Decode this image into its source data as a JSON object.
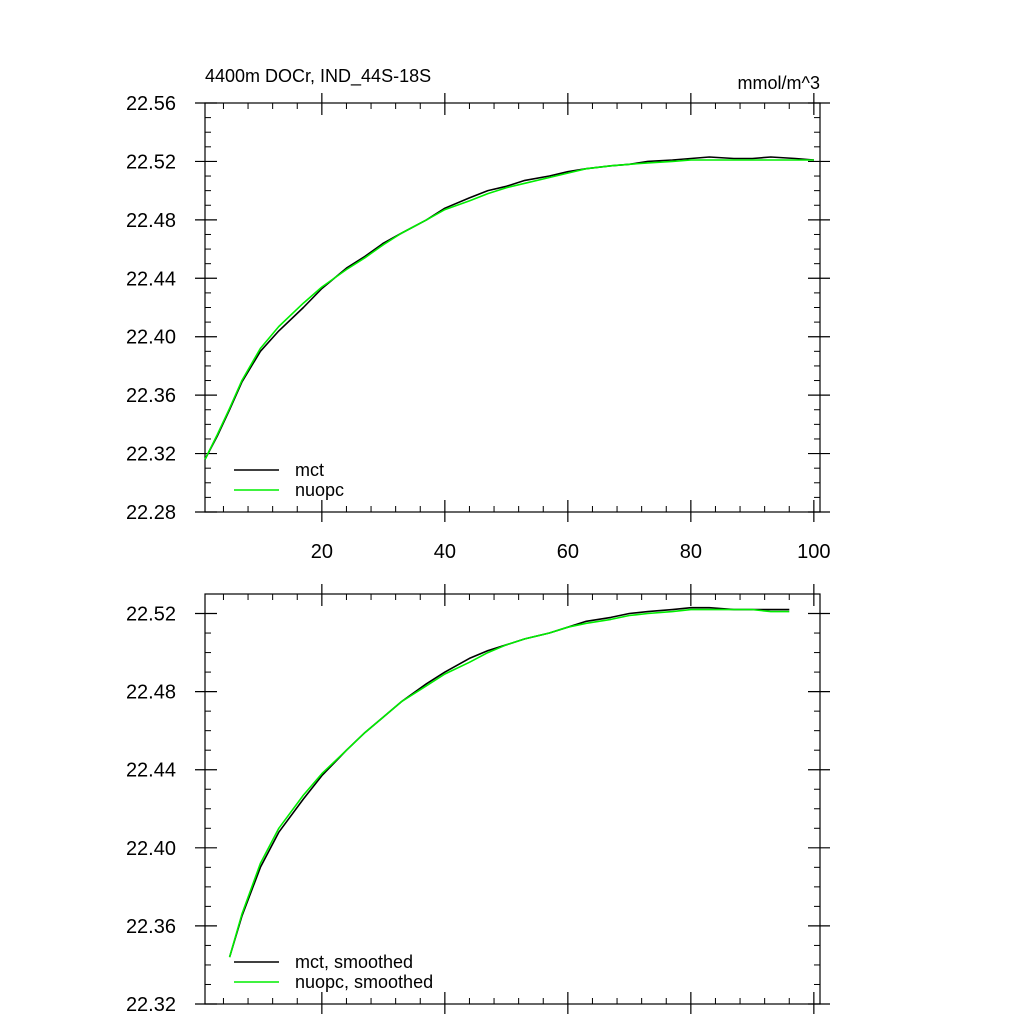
{
  "chart_data": [
    {
      "type": "line",
      "title": "4400m DOCr, IND_44S-18S",
      "units": "mmol/m^3",
      "xlim": [
        1,
        101
      ],
      "ylim": [
        22.28,
        22.56
      ],
      "xticks": [
        20,
        40,
        60,
        80,
        100
      ],
      "xtick_labels": [
        "20",
        "40",
        "60",
        "80",
        "100"
      ],
      "yticks": [
        22.28,
        22.32,
        22.36,
        22.4,
        22.44,
        22.48,
        22.52,
        22.56
      ],
      "ytick_labels": [
        "22.28",
        "22.32",
        "22.36",
        "22.40",
        "22.44",
        "22.48",
        "22.52",
        "22.56"
      ],
      "legend": "bottom-left",
      "series": [
        {
          "name": "mct",
          "color": "#000000",
          "x": [
            1,
            3,
            5,
            7,
            10,
            13,
            17,
            20,
            24,
            27,
            30,
            33,
            37,
            40,
            44,
            47,
            50,
            53,
            57,
            60,
            63,
            67,
            70,
            73,
            77,
            80,
            83,
            87,
            90,
            93,
            97,
            100
          ],
          "y": [
            22.316,
            22.332,
            22.35,
            22.369,
            22.39,
            22.404,
            22.42,
            22.433,
            22.447,
            22.455,
            22.464,
            22.471,
            22.48,
            22.488,
            22.495,
            22.5,
            22.503,
            22.507,
            22.51,
            22.513,
            22.515,
            22.517,
            22.518,
            22.52,
            22.521,
            22.522,
            22.523,
            22.522,
            22.522,
            22.523,
            22.522,
            22.521
          ]
        },
        {
          "name": "nuopc",
          "color": "#00ee00",
          "x": [
            1,
            3,
            5,
            7,
            10,
            13,
            17,
            20,
            24,
            27,
            30,
            33,
            37,
            40,
            44,
            47,
            50,
            53,
            57,
            60,
            63,
            67,
            70,
            73,
            77,
            80,
            83,
            87,
            90,
            93,
            97,
            100
          ],
          "y": [
            22.316,
            22.333,
            22.351,
            22.37,
            22.392,
            22.407,
            22.423,
            22.434,
            22.446,
            22.454,
            22.463,
            22.471,
            22.48,
            22.487,
            22.493,
            22.498,
            22.502,
            22.505,
            22.509,
            22.512,
            22.515,
            22.517,
            22.518,
            22.519,
            22.52,
            22.521,
            22.521,
            22.521,
            22.521,
            22.521,
            22.521,
            22.521
          ]
        }
      ]
    },
    {
      "type": "line",
      "xlim": [
        1,
        101
      ],
      "ylim": [
        22.32,
        22.53
      ],
      "xticks": [
        20,
        40,
        60,
        80,
        100
      ],
      "yticks": [
        22.32,
        22.36,
        22.4,
        22.44,
        22.48,
        22.52
      ],
      "ytick_labels": [
        "22.32",
        "22.36",
        "22.40",
        "22.44",
        "22.48",
        "22.52"
      ],
      "legend": "bottom-left",
      "series": [
        {
          "name": "mct, smoothed",
          "color": "#000000",
          "x": [
            5,
            7,
            10,
            13,
            17,
            20,
            24,
            27,
            30,
            33,
            37,
            40,
            44,
            47,
            50,
            53,
            57,
            60,
            63,
            67,
            70,
            73,
            77,
            80,
            83,
            87,
            90,
            93,
            96
          ],
          "y": [
            22.344,
            22.365,
            22.39,
            22.408,
            22.425,
            22.437,
            22.45,
            22.459,
            22.467,
            22.475,
            22.484,
            22.49,
            22.497,
            22.501,
            22.504,
            22.507,
            22.51,
            22.513,
            22.516,
            22.518,
            22.52,
            22.521,
            22.522,
            22.523,
            22.523,
            22.522,
            22.522,
            22.522,
            22.522
          ]
        },
        {
          "name": "nuopc, smoothed",
          "color": "#00ee00",
          "x": [
            5,
            7,
            10,
            13,
            17,
            20,
            24,
            27,
            30,
            33,
            37,
            40,
            44,
            47,
            50,
            53,
            57,
            60,
            63,
            67,
            70,
            73,
            77,
            80,
            83,
            87,
            90,
            93,
            96
          ],
          "y": [
            22.344,
            22.366,
            22.392,
            22.41,
            22.427,
            22.438,
            22.45,
            22.459,
            22.467,
            22.475,
            22.483,
            22.489,
            22.495,
            22.5,
            22.504,
            22.507,
            22.51,
            22.513,
            22.515,
            22.517,
            22.519,
            22.52,
            22.521,
            22.522,
            22.522,
            22.522,
            22.522,
            22.521,
            22.521
          ]
        }
      ]
    }
  ]
}
